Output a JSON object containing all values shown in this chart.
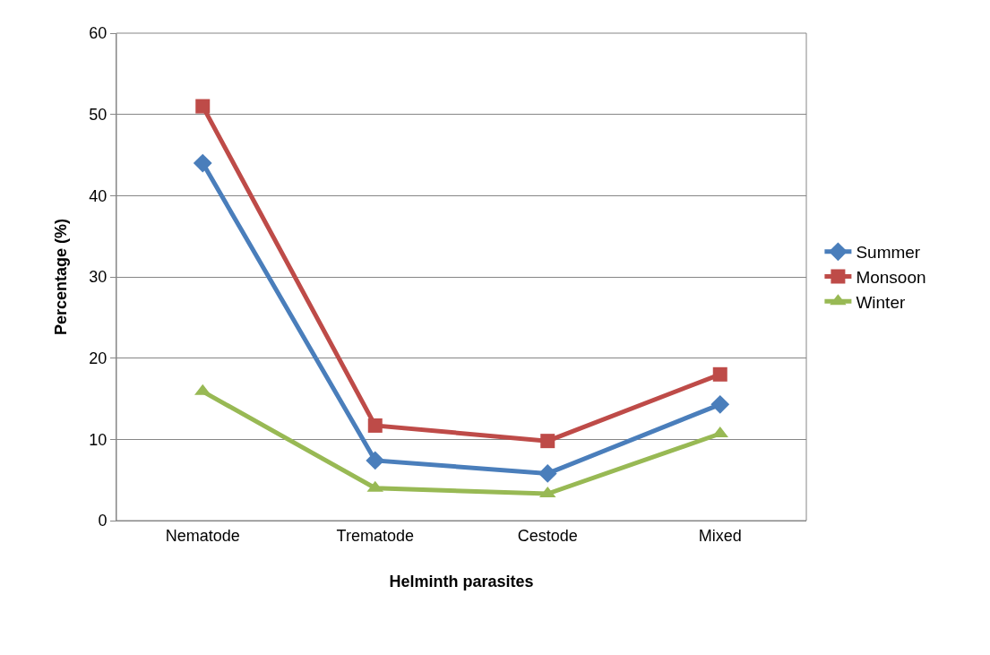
{
  "chart_data": {
    "type": "line",
    "xlabel": "Helminth parasites",
    "ylabel": "Percentage (%)",
    "categories": [
      "Nematode",
      "Trematode",
      "Cestode",
      "Mixed"
    ],
    "series": [
      {
        "name": "Summer",
        "color": "#4a7ebb",
        "marker": "diamond",
        "values": [
          44.0,
          7.4,
          5.8,
          14.3
        ]
      },
      {
        "name": "Monsoon",
        "color": "#be4b48",
        "marker": "square",
        "values": [
          51.0,
          11.7,
          9.8,
          18.0
        ]
      },
      {
        "name": "Winter",
        "color": "#98b954",
        "marker": "triangle",
        "values": [
          15.9,
          4.0,
          3.3,
          10.7
        ]
      }
    ],
    "ylim": [
      0,
      60
    ],
    "yticks": [
      0,
      10,
      20,
      30,
      40,
      50,
      60
    ],
    "grid": "y",
    "legend": "right",
    "line_style": "solid"
  }
}
